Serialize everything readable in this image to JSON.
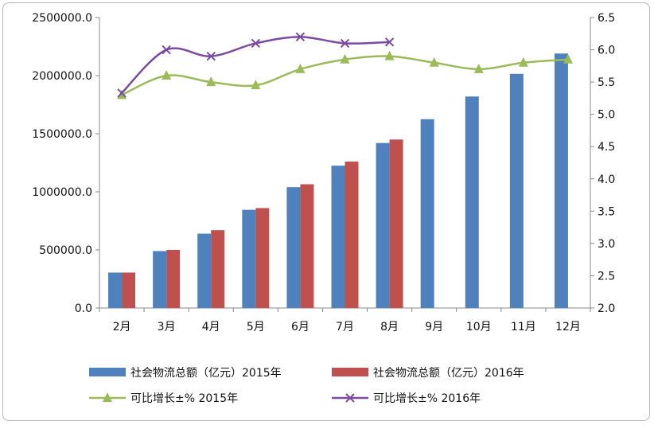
{
  "chart_data": {
    "type": "bar",
    "categories": [
      "2月",
      "3月",
      "4月",
      "5月",
      "6月",
      "7月",
      "8月",
      "9月",
      "10月",
      "11月",
      "12月"
    ],
    "series": [
      {
        "name": "社会物流总额（亿元）2015年",
        "kind": "bar",
        "axis": "left",
        "color": "#4f81bd",
        "values": [
          305000,
          490000,
          640000,
          845000,
          1040000,
          1225000,
          1420000,
          1625000,
          1820000,
          2015000,
          2190000
        ]
      },
      {
        "name": "社会物流总额（亿元）2016年",
        "kind": "bar",
        "axis": "left",
        "color": "#c0504d",
        "values": [
          305000,
          500000,
          670000,
          860000,
          1065000,
          1260000,
          1450000,
          null,
          null,
          null,
          null
        ]
      },
      {
        "name": "可比增长±% 2015年",
        "kind": "line",
        "axis": "right",
        "color": "#9bbb59",
        "marker": "triangle",
        "values": [
          5.3,
          5.6,
          5.5,
          5.45,
          5.7,
          5.85,
          5.9,
          5.8,
          5.7,
          5.8,
          5.85
        ]
      },
      {
        "name": "可比增长±% 2016年",
        "kind": "line",
        "axis": "right",
        "color": "#7a4ba0",
        "marker": "x",
        "values": [
          5.33,
          6.0,
          5.9,
          6.1,
          6.2,
          6.1,
          6.12,
          null,
          null,
          null,
          null
        ]
      }
    ],
    "y_left": {
      "ylim": [
        0,
        2500000
      ],
      "ticks": [
        "0.0",
        "500000.0",
        "1000000.0",
        "1500000.0",
        "2000000.0",
        "2500000.0"
      ],
      "tick_values": [
        0,
        500000,
        1000000,
        1500000,
        2000000,
        2500000
      ]
    },
    "y_right": {
      "ylim": [
        2.0,
        6.5
      ],
      "ticks": [
        "2.0",
        "2.5",
        "3.0",
        "3.5",
        "4.0",
        "4.5",
        "5.0",
        "5.5",
        "6.0",
        "6.5"
      ],
      "tick_values": [
        2.0,
        2.5,
        3.0,
        3.5,
        4.0,
        4.5,
        5.0,
        5.5,
        6.0,
        6.5
      ]
    },
    "title": "",
    "xlabel": "",
    "ylabel": "",
    "grid": false,
    "legend_position": "bottom"
  }
}
